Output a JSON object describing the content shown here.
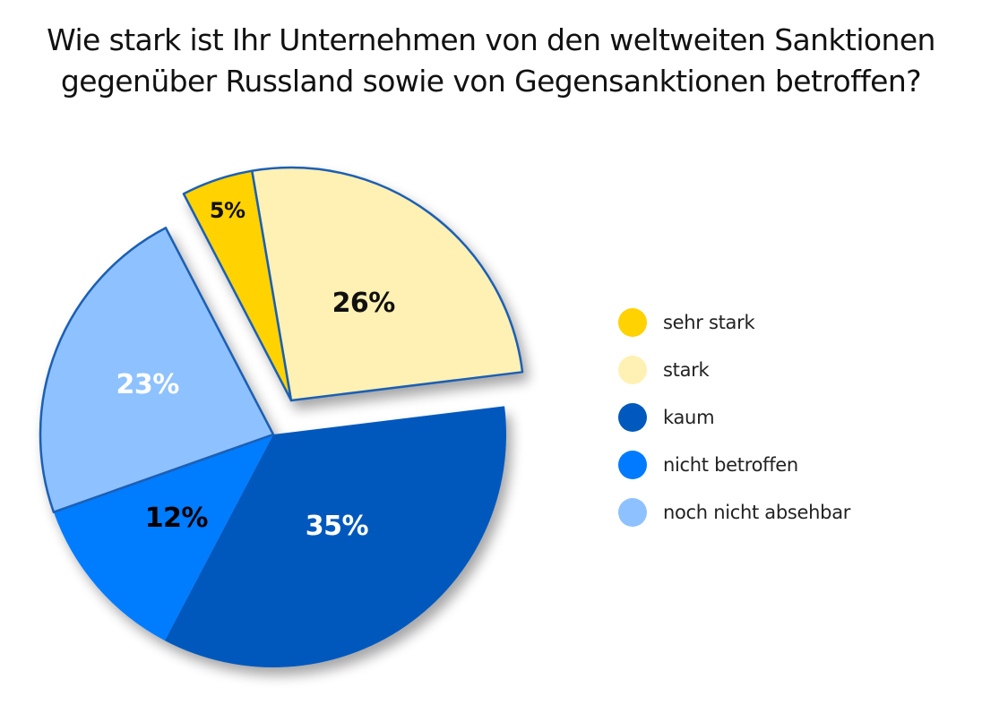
{
  "chart_data": {
    "type": "pie",
    "title": "Wie stark ist Ihr Unternehmen von den weltweiten Sanktionen gegenüber Russland sowie von Gegensanktionen betroffen?",
    "title_lines": [
      "Wie stark ist Ihr Unternehmen von den weltweiten Sanktionen",
      "gegenüber Russland sowie von Gegensanktionen betroffen?"
    ],
    "unit": "%",
    "legend_position": "right",
    "slices": [
      {
        "key": "kaum",
        "label": "kaum",
        "value": 35,
        "display": "35%",
        "color": "#0059bd",
        "label_color": "#ffffff",
        "exploded": false
      },
      {
        "key": "nicht_betroffen",
        "label": "nicht betroffen",
        "value": 12,
        "display": "12%",
        "color": "#007bff",
        "label_color": "#000000",
        "exploded": false
      },
      {
        "key": "noch_nicht_absehbar",
        "label": "noch nicht absehbar",
        "value": 23,
        "display": "23%",
        "color": "#8ec1ff",
        "label_color": "#ffffff",
        "exploded": false
      },
      {
        "key": "sehr_stark",
        "label": "sehr stark",
        "value": 5,
        "display": "5%",
        "color": "#ffd200",
        "label_color": "#111111",
        "exploded": true
      },
      {
        "key": "stark",
        "label": "stark",
        "value": 26,
        "display": "26%",
        "color": "#fff1b3",
        "label_color": "#111111",
        "exploded": true
      }
    ],
    "legend": [
      {
        "label": "sehr stark",
        "color": "#ffd200"
      },
      {
        "label": "stark",
        "color": "#fff1b3"
      },
      {
        "label": "kaum",
        "color": "#0059bd"
      },
      {
        "label": "nicht betroffen",
        "color": "#007bff"
      },
      {
        "label": "noch nicht absehbar",
        "color": "#8ec1ff"
      }
    ],
    "outline_color": "#1a5fb4"
  }
}
